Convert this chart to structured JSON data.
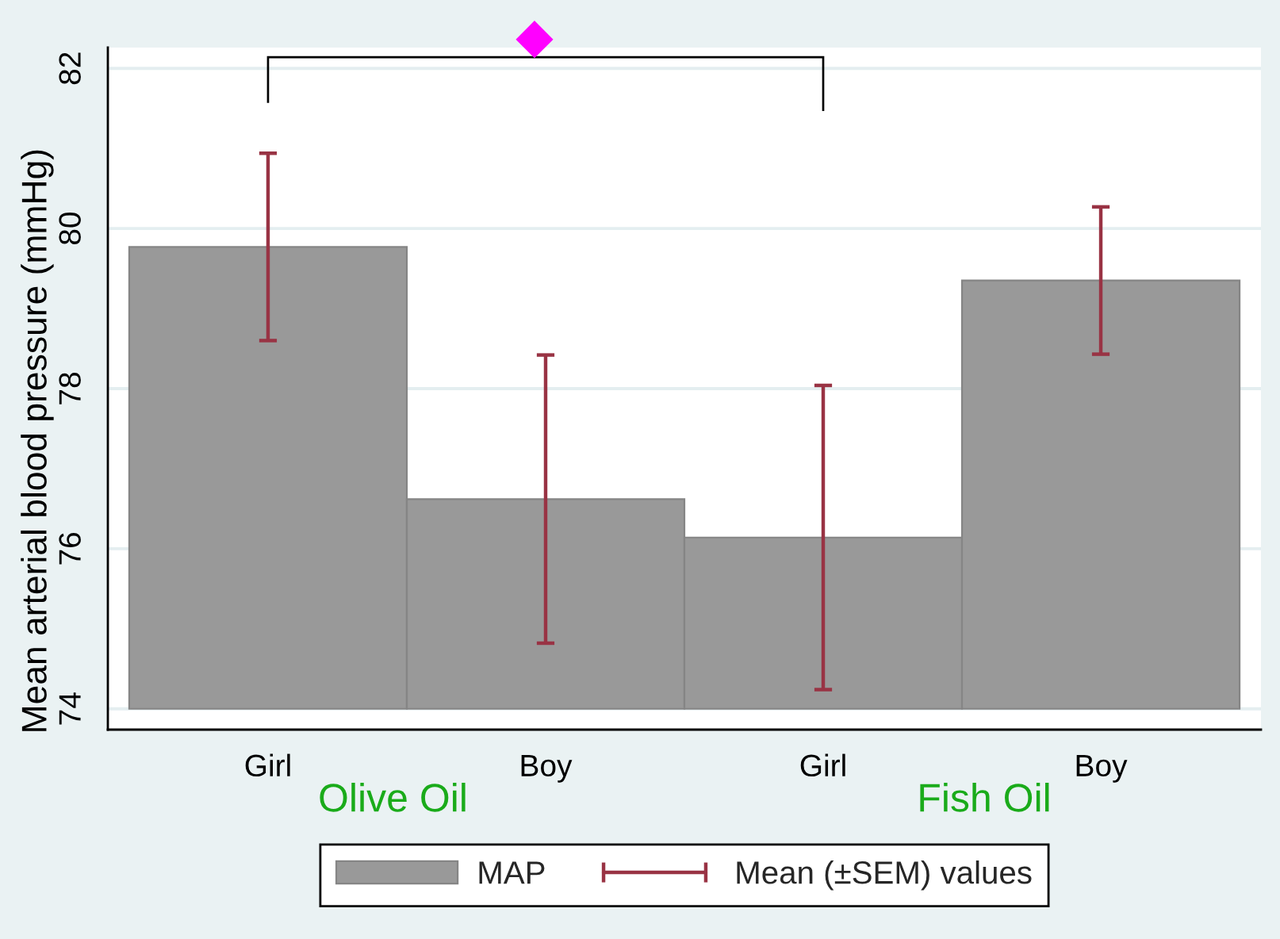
{
  "chart_data": {
    "type": "bar",
    "categories": [
      "Girl",
      "Boy",
      "Girl",
      "Boy"
    ],
    "series": [
      {
        "name": "MAP",
        "color": "#999999",
        "base": [
          74,
          74,
          74,
          74
        ],
        "values": [
          5.77,
          2.62,
          2.14,
          5.35
        ],
        "errors": [
          1.17,
          1.8,
          1.9,
          0.92
        ]
      }
    ],
    "ylabel": "Mean arterial blood pressure (mmHg)",
    "ylim": [
      73.74,
      82.26
    ],
    "yticks": [
      74,
      76,
      78,
      80,
      82
    ],
    "grid": "y",
    "legend": "bottom",
    "annotations": [
      "Olive Oil",
      "Fish Oil",
      "Mean (±SEM) values"
    ]
  }
}
